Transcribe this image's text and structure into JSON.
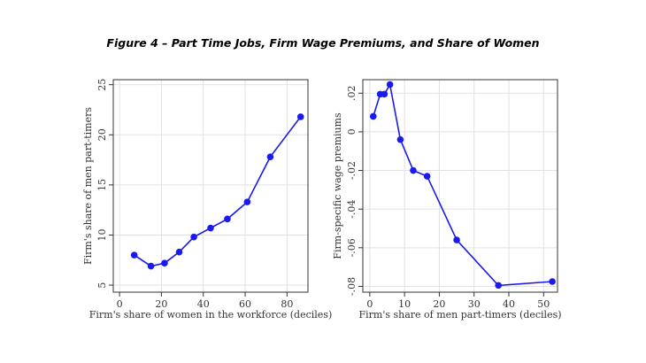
{
  "title": "Figure 4 – Part Time Jobs, Firm Wage Premiums, and Share of Women",
  "chart_data": [
    {
      "type": "line",
      "xlabel": "Firm's share of women in the workforce (deciles)",
      "ylabel": "Firm's share of men part-timers",
      "xlim": [
        -3,
        90
      ],
      "ylim": [
        4.3,
        25.5
      ],
      "xticks": [
        0,
        20,
        40,
        60,
        80
      ],
      "yticks": [
        5,
        10,
        15,
        20,
        25
      ],
      "xtick_labels": [
        "0",
        "20",
        "40",
        "60",
        "80"
      ],
      "ytick_labels": [
        "5",
        "10",
        "15",
        "20",
        "25"
      ],
      "grid": true,
      "color": "#1a1aee",
      "x": [
        7,
        15,
        21.5,
        28.5,
        35.5,
        43.5,
        51.5,
        61,
        72,
        86.5
      ],
      "y": [
        8.0,
        6.9,
        7.2,
        8.3,
        9.8,
        10.7,
        11.6,
        13.3,
        17.8,
        21.8
      ]
    },
    {
      "type": "line",
      "xlabel": "Firm's share of men part-timers (deciles)",
      "ylabel": "Firm-specific wage premiums",
      "xlim": [
        -2,
        54
      ],
      "ylim": [
        -0.083,
        0.027
      ],
      "xticks": [
        0,
        10,
        20,
        30,
        40,
        50
      ],
      "yticks": [
        -0.08,
        -0.06,
        -0.04,
        -0.02,
        0,
        0.02
      ],
      "xtick_labels": [
        "0",
        "10",
        "20",
        "30",
        "40",
        "50"
      ],
      "ytick_labels": [
        "-.08",
        "-.06",
        "-.04",
        "-.02",
        "0",
        ".02"
      ],
      "grid": true,
      "color": "#1a1aee",
      "x": [
        1,
        3,
        4.2,
        5.8,
        8.8,
        12.5,
        16.5,
        25,
        37,
        52.5
      ],
      "y": [
        0.008,
        0.0195,
        0.0195,
        0.0245,
        -0.004,
        -0.02,
        -0.023,
        -0.056,
        -0.0795,
        -0.0775
      ]
    }
  ]
}
